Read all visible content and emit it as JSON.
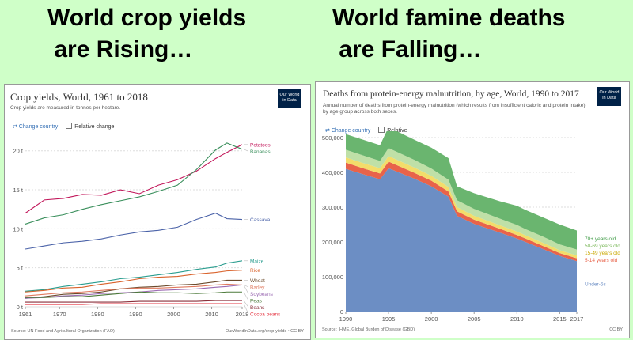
{
  "slide": {
    "left_heading": "World crop yields\n are Rising…",
    "right_heading": "World famine deaths\n are Falling…"
  },
  "chart_data": [
    {
      "type": "line",
      "title": "Crop yields, World, 1961 to 2018",
      "subtitle": "Crop yields are measured in tonnes per hectare.",
      "change_country": "⇄ Change country",
      "relative": "Relative change",
      "logo": "Our World in Data",
      "source_left": "Source: UN Food and Agricultural Organization (FAO)",
      "source_right": "OurWorldInData.org/crop-yields • CC BY",
      "xlim": [
        1961,
        2018
      ],
      "ylim": [
        0,
        22
      ],
      "x_ticks": [
        "1961",
        "1970",
        "1980",
        "1990",
        "2000",
        "2010",
        "2018"
      ],
      "y_ticks": [
        "0 t",
        "5 t",
        "10 t",
        "15 t",
        "20 t"
      ],
      "x": [
        1961,
        1966,
        1971,
        1976,
        1981,
        1986,
        1991,
        1996,
        2001,
        2006,
        2011,
        2014,
        2018
      ],
      "series": [
        {
          "name": "Potatoes",
          "color": "#c2185b",
          "values": [
            12.0,
            13.7,
            13.9,
            14.4,
            14.3,
            15.0,
            14.5,
            15.6,
            16.3,
            17.4,
            19.0,
            19.8,
            20.8
          ]
        },
        {
          "name": "Bananas",
          "color": "#3a8f5c",
          "values": [
            10.6,
            11.4,
            11.8,
            12.5,
            13.1,
            13.6,
            14.1,
            14.8,
            15.6,
            17.6,
            20.1,
            21.0,
            20.2
          ]
        },
        {
          "name": "Cassava",
          "color": "#4a62a8",
          "values": [
            7.4,
            7.8,
            8.2,
            8.4,
            8.7,
            9.2,
            9.6,
            9.8,
            10.2,
            11.2,
            12.0,
            11.3,
            11.2
          ]
        },
        {
          "name": "Maize",
          "color": "#2a9d8f",
          "values": [
            2.0,
            2.2,
            2.6,
            2.9,
            3.2,
            3.6,
            3.8,
            4.1,
            4.4,
            4.8,
            5.1,
            5.6,
            5.9
          ]
        },
        {
          "name": "Rice",
          "color": "#d9622b",
          "values": [
            1.9,
            2.1,
            2.4,
            2.5,
            2.9,
            3.2,
            3.6,
            3.8,
            3.9,
            4.2,
            4.4,
            4.6,
            4.7
          ]
        },
        {
          "name": "Wheat",
          "color": "#6b4a2b",
          "values": [
            1.1,
            1.3,
            1.6,
            1.7,
            1.9,
            2.3,
            2.5,
            2.6,
            2.8,
            2.9,
            3.2,
            3.4,
            3.4
          ]
        },
        {
          "name": "Barley",
          "color": "#e07a5f",
          "values": [
            1.4,
            1.6,
            1.8,
            1.9,
            2.1,
            2.3,
            2.4,
            2.4,
            2.5,
            2.6,
            2.8,
            2.9,
            2.8
          ]
        },
        {
          "name": "Soybeans",
          "color": "#9b6bb3",
          "values": [
            1.1,
            1.2,
            1.4,
            1.5,
            1.7,
            1.8,
            1.9,
            2.1,
            2.2,
            2.3,
            2.5,
            2.6,
            2.8
          ]
        },
        {
          "name": "Peas",
          "color": "#4c7a3a",
          "values": [
            1.2,
            1.2,
            1.3,
            1.3,
            1.5,
            1.7,
            1.9,
            1.8,
            1.8,
            1.7,
            1.8,
            1.9,
            1.9
          ]
        },
        {
          "name": "Beans",
          "color": "#8a2f3a",
          "values": [
            0.6,
            0.6,
            0.6,
            0.6,
            0.6,
            0.6,
            0.7,
            0.7,
            0.7,
            0.7,
            0.8,
            0.8,
            0.8
          ]
        },
        {
          "name": "Cocoa beans",
          "color": "#e63946",
          "values": [
            0.3,
            0.3,
            0.3,
            0.3,
            0.4,
            0.4,
            0.4,
            0.4,
            0.4,
            0.4,
            0.4,
            0.4,
            0.4
          ]
        }
      ]
    },
    {
      "type": "area",
      "title": "Deaths from protein-energy malnutrition, by age, World, 1990 to 2017",
      "subtitle": "Annual number of deaths from protein-energy malnutrition (which results from insufficient caloric and protein intake) by age group across both sexes.",
      "change_country": "⇄ Change country",
      "relative": "Relative",
      "logo": "Our World in Data",
      "source_left": "Source: IHME, Global Burden of Disease (GBD)",
      "source_right": "CC BY",
      "xlim": [
        1990,
        2017
      ],
      "ylim": [
        0,
        500000
      ],
      "x_ticks": [
        "1990",
        "1995",
        "2000",
        "2005",
        "2010",
        "2015",
        "2017"
      ],
      "y_ticks": [
        "0",
        "100,000",
        "200,000",
        "300,000",
        "400,000",
        "500,000"
      ],
      "x": [
        1990,
        1992,
        1994,
        1995,
        1998,
        2000,
        2002,
        2003,
        2005,
        2008,
        2010,
        2011,
        2013,
        2015,
        2017
      ],
      "series": [
        {
          "name": "Under-5s",
          "color": "#6c8ec4",
          "values": [
            410000,
            395000,
            380000,
            412000,
            382000,
            360000,
            330000,
            275000,
            252000,
            227000,
            210000,
            200000,
            180000,
            160000,
            145000
          ]
        },
        {
          "name": "5-14 years old",
          "color": "#e8634a",
          "values": [
            18000,
            17000,
            17000,
            19000,
            17000,
            16000,
            15000,
            13000,
            12000,
            11000,
            10000,
            10000,
            9000,
            8000,
            8000
          ]
        },
        {
          "name": "15-49 years old",
          "color": "#f3dd6a",
          "values": [
            15000,
            15000,
            15000,
            16000,
            15000,
            14000,
            13000,
            12000,
            11000,
            10000,
            10000,
            9000,
            9000,
            8000,
            8000
          ]
        },
        {
          "name": "50-69 years old",
          "color": "#bfe0a7",
          "values": [
            22000,
            22000,
            21000,
            23000,
            22000,
            21000,
            21000,
            20000,
            20000,
            19000,
            19000,
            18000,
            18000,
            17000,
            17000
          ]
        },
        {
          "name": "70+ years old",
          "color": "#6ab56f",
          "values": [
            45000,
            45000,
            45000,
            60000,
            58000,
            60000,
            62000,
            40000,
            45000,
            50000,
            55000,
            55000,
            55000,
            57000,
            55000
          ]
        }
      ]
    }
  ]
}
